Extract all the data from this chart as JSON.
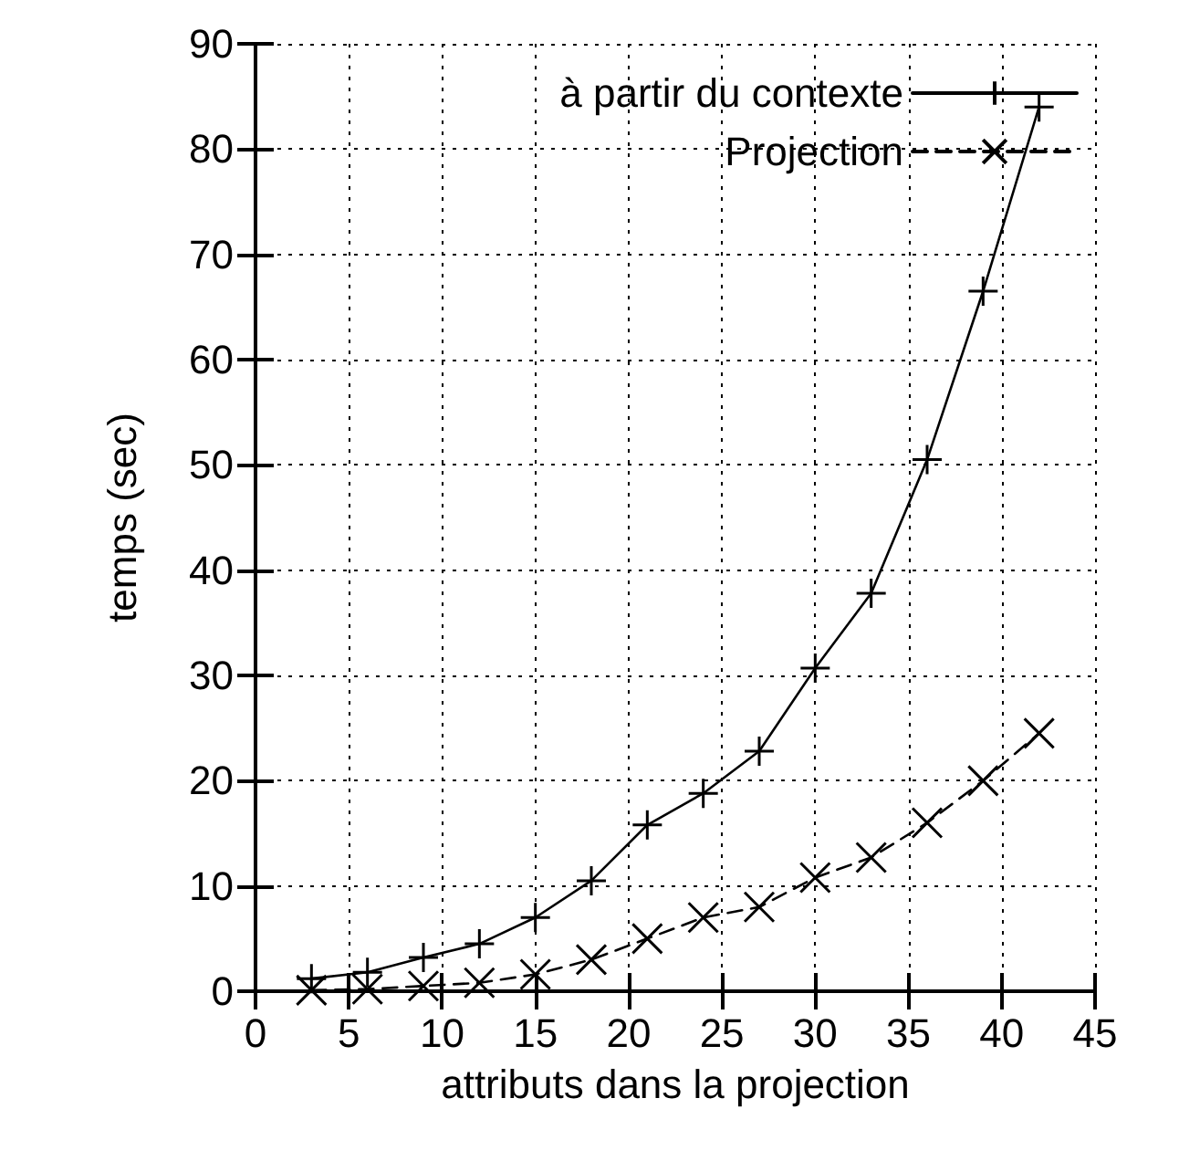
{
  "chart_data": {
    "type": "line",
    "xlabel": "attributs dans la projection",
    "ylabel": "temps (sec)",
    "x": [
      3,
      6,
      9,
      12,
      15,
      18,
      21,
      24,
      27,
      30,
      33,
      36,
      39,
      42
    ],
    "series": [
      {
        "name": "à partir du contexte",
        "color": "#000000",
        "marker": "cross",
        "line_style": "solid",
        "values": [
          1.2,
          1.8,
          3.2,
          4.5,
          7,
          10.5,
          15.8,
          18.8,
          22.8,
          30.7,
          37.8,
          50.5,
          66.5,
          84
        ]
      },
      {
        "name": "Projection",
        "color": "#000000",
        "marker": "x",
        "line_style": "dashed",
        "values": [
          0.1,
          0.2,
          0.5,
          0.8,
          1.6,
          3.0,
          5.0,
          7.0,
          8.0,
          10.8,
          12.7,
          16,
          20,
          24.5
        ]
      }
    ],
    "xlim": [
      0,
      45
    ],
    "xticks": [
      0,
      5,
      10,
      15,
      20,
      25,
      30,
      35,
      40,
      45
    ],
    "ylim": [
      0,
      90
    ],
    "yticks": [
      0,
      10,
      20,
      30,
      40,
      50,
      60,
      70,
      80,
      90
    ],
    "grid": true,
    "legend": "top right"
  }
}
